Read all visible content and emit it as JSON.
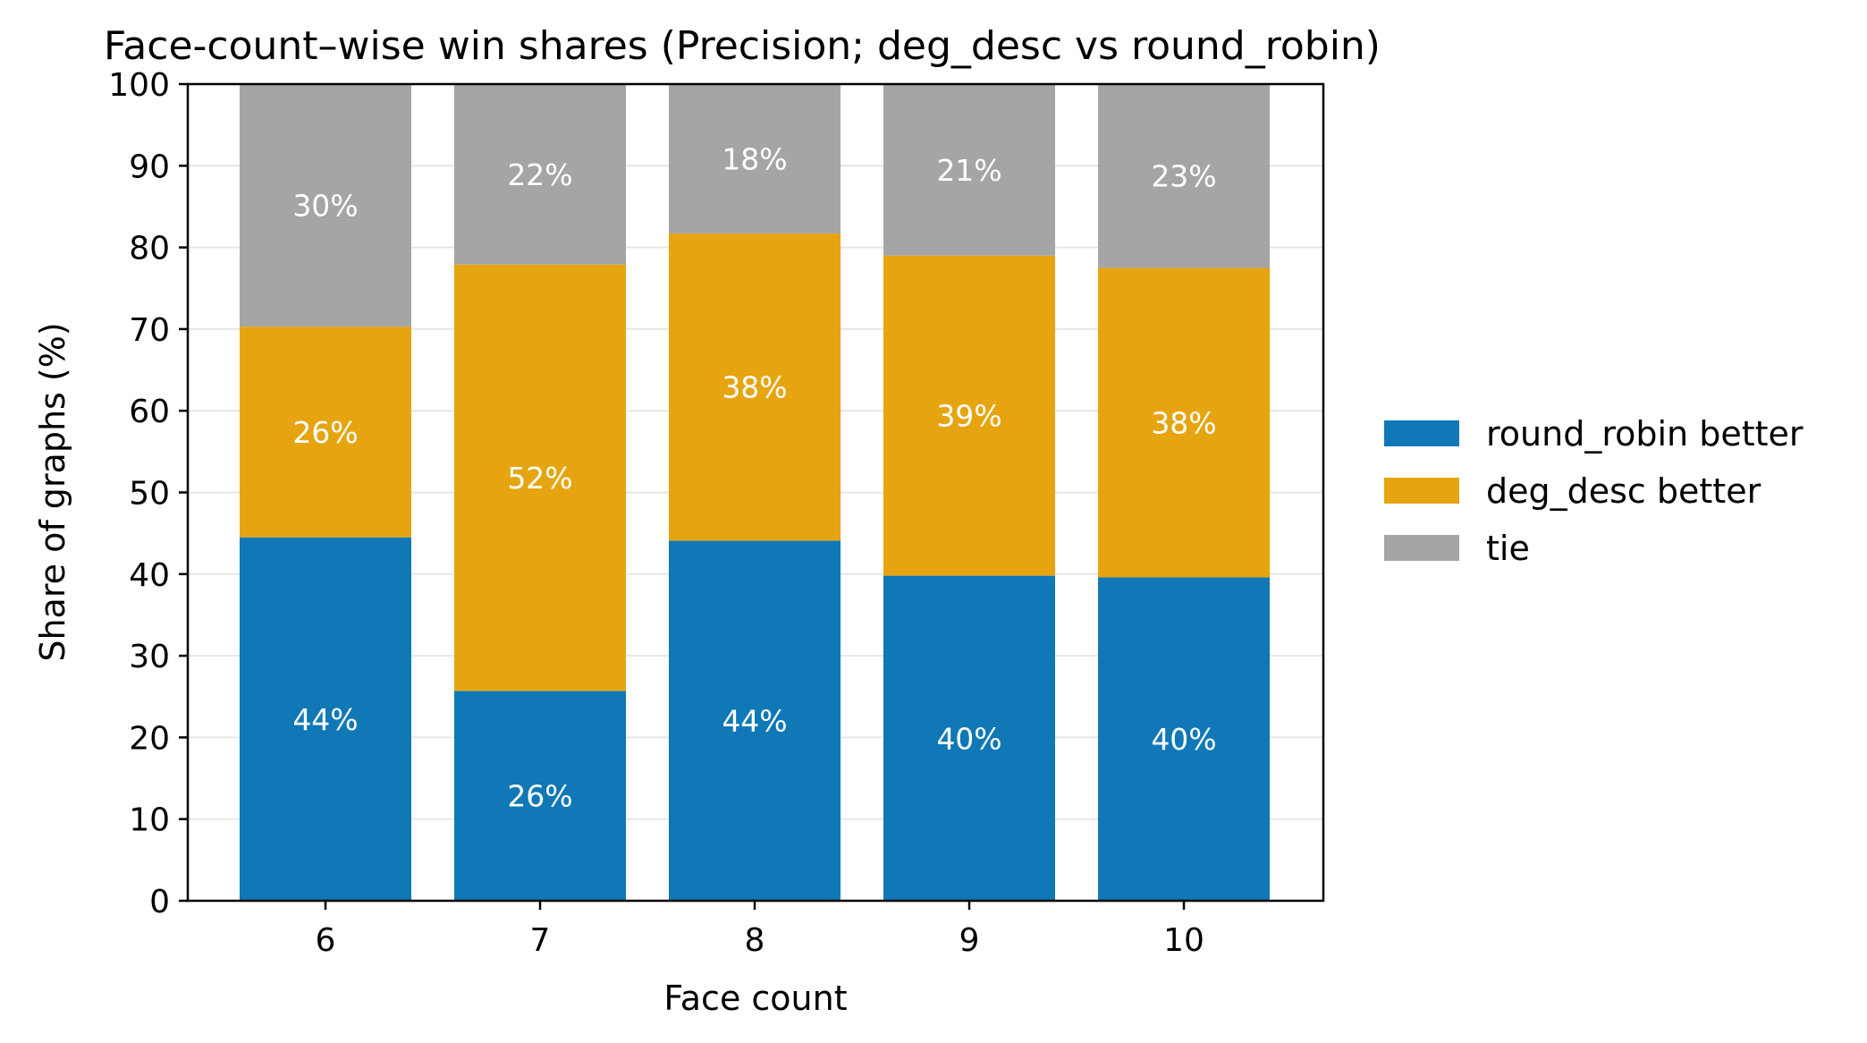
{
  "chart_data": {
    "type": "bar",
    "stacked": true,
    "title": "Face-count–wise win shares (Precision; deg_desc vs round_robin)",
    "xlabel": "Face count",
    "ylabel": "Share of graphs (%)",
    "ylim": [
      0,
      100
    ],
    "yticks": [
      0,
      10,
      20,
      30,
      40,
      50,
      60,
      70,
      80,
      90,
      100
    ],
    "categories": [
      "6",
      "7",
      "8",
      "9",
      "10"
    ],
    "grid": "horizontal",
    "legend_position": "right",
    "series": [
      {
        "name": "round_robin better",
        "color": "#1078b7",
        "values": [
          44.5,
          25.7,
          44.1,
          39.8,
          39.6
        ],
        "labels": [
          "44%",
          "26%",
          "44%",
          "40%",
          "40%"
        ]
      },
      {
        "name": "deg_desc better",
        "color": "#e6a510",
        "values": [
          25.8,
          52.2,
          37.6,
          39.2,
          37.9
        ],
        "labels": [
          "26%",
          "52%",
          "38%",
          "39%",
          "38%"
        ]
      },
      {
        "name": "tie",
        "color": "#a5a5a5",
        "values": [
          29.7,
          22.1,
          18.3,
          21.0,
          22.5
        ],
        "labels": [
          "30%",
          "22%",
          "18%",
          "21%",
          "23%"
        ]
      }
    ]
  }
}
